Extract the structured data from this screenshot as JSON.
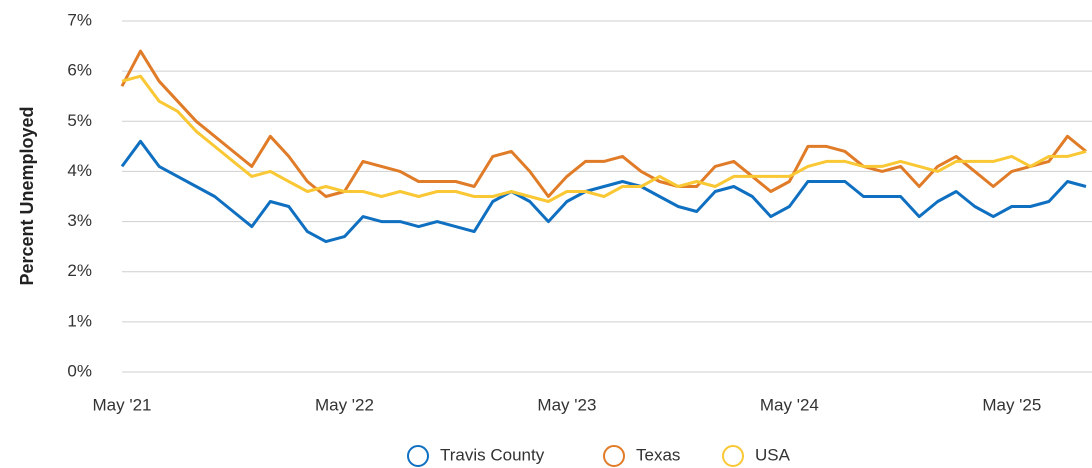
{
  "chart_data": {
    "type": "line",
    "y_label": "Percent Unemployed",
    "categories": [
      "May '21",
      null,
      null,
      null,
      null,
      null,
      null,
      null,
      null,
      null,
      null,
      null,
      "May '22",
      null,
      null,
      null,
      null,
      null,
      null,
      null,
      null,
      null,
      null,
      null,
      "May '23",
      null,
      null,
      null,
      null,
      null,
      null,
      null,
      null,
      null,
      null,
      null,
      "May '24",
      null,
      null,
      null,
      null,
      null,
      null,
      null,
      null,
      null,
      null,
      null,
      "May '25",
      null,
      null,
      null,
      null
    ],
    "series": [
      {
        "name": "Travis County",
        "color": "#0f6fc0",
        "values": [
          4.1,
          4.6,
          4.1,
          3.9,
          3.7,
          3.5,
          3.2,
          2.9,
          3.4,
          3.3,
          2.8,
          2.6,
          2.7,
          3.1,
          3.0,
          3.0,
          2.9,
          3.0,
          2.9,
          2.8,
          3.4,
          3.6,
          3.4,
          3.0,
          3.4,
          3.6,
          3.7,
          3.8,
          3.7,
          3.5,
          3.3,
          3.2,
          3.6,
          3.7,
          3.5,
          3.1,
          3.3,
          3.8,
          3.8,
          3.8,
          3.5,
          3.5,
          3.5,
          3.1,
          3.4,
          3.6,
          3.3,
          3.1,
          3.3,
          3.3,
          3.4,
          3.8,
          3.7
        ]
      },
      {
        "name": "Texas",
        "color": "#e07b28",
        "values": [
          5.7,
          6.4,
          5.8,
          5.4,
          5.0,
          4.7,
          4.4,
          4.1,
          4.7,
          4.3,
          3.8,
          3.5,
          3.6,
          4.2,
          4.1,
          4.0,
          3.8,
          3.8,
          3.8,
          3.7,
          4.3,
          4.4,
          4.0,
          3.5,
          3.9,
          4.2,
          4.2,
          4.3,
          4.0,
          3.8,
          3.7,
          3.7,
          4.1,
          4.2,
          3.9,
          3.6,
          3.8,
          4.5,
          4.5,
          4.4,
          4.1,
          4.0,
          4.1,
          3.7,
          4.1,
          4.3,
          4.0,
          3.7,
          4.0,
          4.1,
          4.2,
          4.7,
          4.4
        ]
      },
      {
        "name": "USA",
        "color": "#f9c834",
        "values": [
          5.8,
          5.9,
          5.4,
          5.2,
          4.8,
          4.5,
          4.2,
          3.9,
          4.0,
          3.8,
          3.6,
          3.7,
          3.6,
          3.6,
          3.5,
          3.6,
          3.5,
          3.6,
          3.6,
          3.5,
          3.5,
          3.6,
          3.5,
          3.4,
          3.6,
          3.6,
          3.5,
          3.7,
          3.7,
          3.9,
          3.7,
          3.8,
          3.7,
          3.9,
          3.9,
          3.9,
          3.9,
          4.1,
          4.2,
          4.2,
          4.1,
          4.1,
          4.2,
          4.1,
          4.0,
          4.2,
          4.2,
          4.2,
          4.3,
          4.1,
          4.3,
          4.3,
          4.4
        ]
      }
    ],
    "ylim": [
      0,
      7
    ],
    "yticks": [
      {
        "value": 0,
        "label": "0%"
      },
      {
        "value": 1,
        "label": "1%"
      },
      {
        "value": 2,
        "label": "2%"
      },
      {
        "value": 3,
        "label": "3%"
      },
      {
        "value": 4,
        "label": "4%"
      },
      {
        "value": 5,
        "label": "5%"
      },
      {
        "value": 6,
        "label": "6%"
      },
      {
        "value": 7,
        "label": "7%"
      }
    ],
    "grid": true,
    "legend": "bottom"
  }
}
